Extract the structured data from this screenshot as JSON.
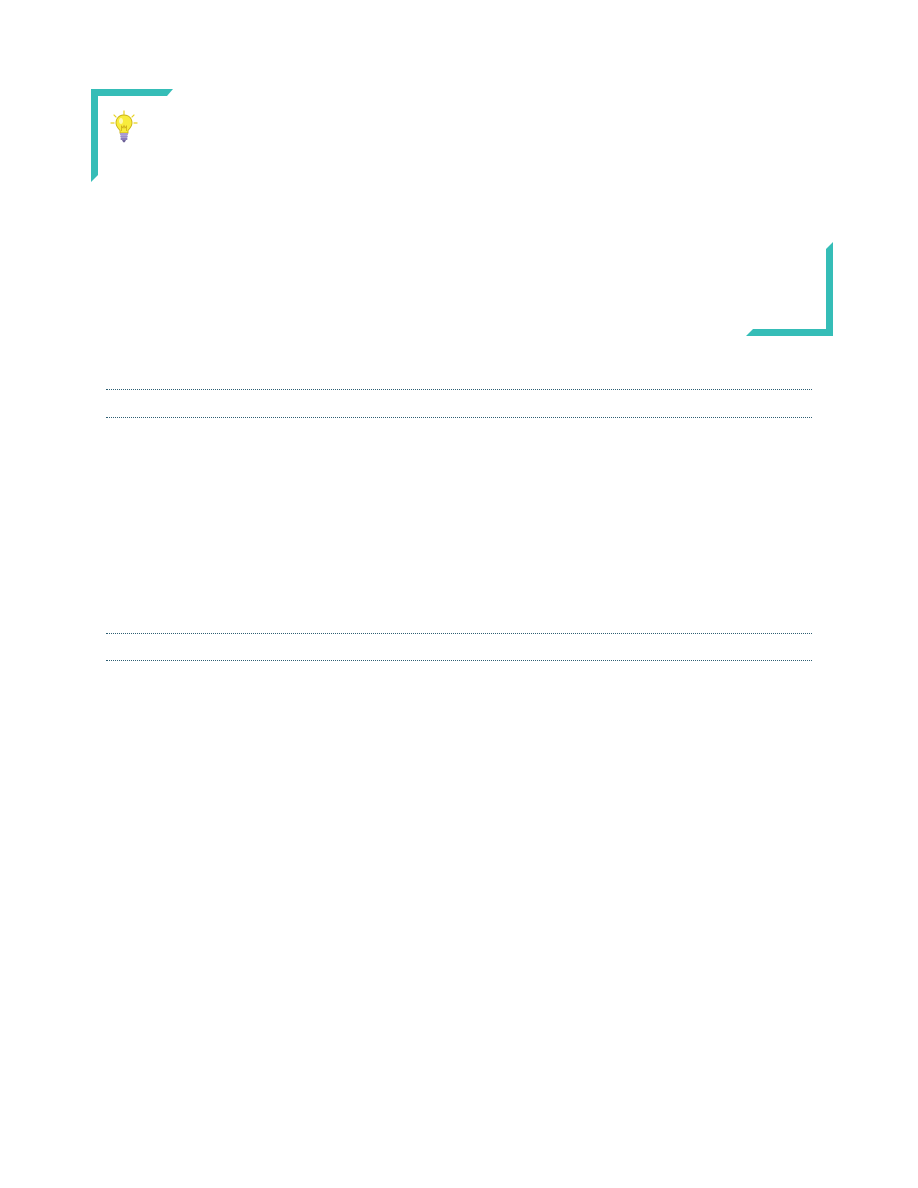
{
  "colors": {
    "accent": "#35bdb7",
    "rule": "#2f5f73",
    "bulb_glass": "#f8ec3c",
    "bulb_base": "#9a8cc8"
  },
  "icons": {
    "tip_icon": "lightbulb-icon",
    "frame_corner_top_left": "corner-bracket-icon",
    "frame_corner_bottom_right": "corner-bracket-icon"
  },
  "rules": [
    {
      "style": "dotted"
    },
    {
      "style": "dotted"
    },
    {
      "style": "dotted"
    },
    {
      "style": "dotted"
    }
  ]
}
